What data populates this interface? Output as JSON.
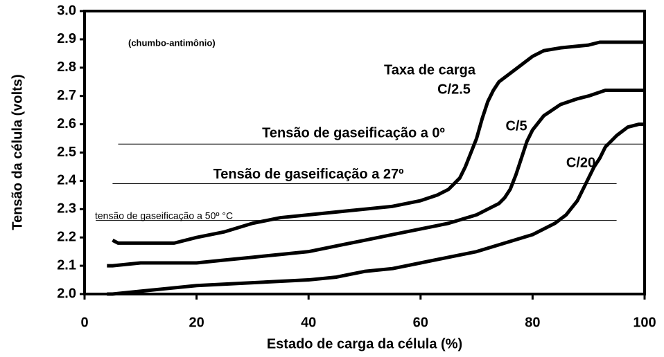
{
  "chart_data": {
    "type": "line",
    "xlabel": "Estado de carga da célula (%)",
    "ylabel": "Tensão da célula (volts)",
    "xlim": [
      0,
      100
    ],
    "ylim": [
      2.0,
      3.0
    ],
    "xticks": [
      0,
      20,
      40,
      60,
      80,
      100
    ],
    "yticks": [
      {
        "value": 2.0,
        "label": "2.0"
      },
      2.1,
      2.2,
      2.3,
      2.4,
      2.5,
      2.6,
      2.7,
      2.8,
      2.9,
      {
        "value": 3.0,
        "label": "3.0"
      }
    ],
    "annotations": [
      "(chumbo-antimônio)",
      "Taxa de carga"
    ],
    "reference_lines": [
      {
        "label": "Tensão de gaseificação a 0º",
        "y": 2.53,
        "x": [
          6,
          100
        ]
      },
      {
        "label": "Tensão de gaseificação a 27º",
        "y": 2.39,
        "x": [
          5,
          95
        ]
      },
      {
        "label": "tensão de gaseificação a 50º °C",
        "y": 2.26,
        "x": [
          2,
          95
        ]
      }
    ],
    "series": [
      {
        "name": "C/2.5",
        "color": "#000000",
        "x": [
          5,
          6,
          10,
          16,
          20,
          25,
          30,
          35,
          40,
          45,
          50,
          55,
          60,
          63,
          65,
          67,
          68,
          69,
          70,
          71,
          72,
          73,
          74,
          76,
          78,
          80,
          82,
          85,
          90,
          92,
          100
        ],
        "values": [
          2.19,
          2.18,
          2.18,
          2.18,
          2.2,
          2.22,
          2.25,
          2.27,
          2.28,
          2.29,
          2.3,
          2.31,
          2.33,
          2.35,
          2.37,
          2.41,
          2.45,
          2.5,
          2.55,
          2.62,
          2.68,
          2.72,
          2.75,
          2.78,
          2.81,
          2.84,
          2.86,
          2.87,
          2.88,
          2.89,
          2.89
        ]
      },
      {
        "name": "C/5",
        "color": "#000000",
        "x": [
          4,
          5,
          10,
          15,
          20,
          25,
          30,
          35,
          40,
          45,
          50,
          55,
          60,
          65,
          70,
          72,
          74,
          75,
          76,
          77,
          78,
          79,
          80,
          82,
          85,
          88,
          90,
          93,
          95,
          100
        ],
        "values": [
          2.1,
          2.1,
          2.11,
          2.11,
          2.11,
          2.12,
          2.13,
          2.14,
          2.15,
          2.17,
          2.19,
          2.21,
          2.23,
          2.25,
          2.28,
          2.3,
          2.32,
          2.34,
          2.37,
          2.42,
          2.48,
          2.54,
          2.58,
          2.63,
          2.67,
          2.69,
          2.7,
          2.72,
          2.72,
          2.72
        ]
      },
      {
        "name": "C/20",
        "color": "#000000",
        "x": [
          4,
          5,
          10,
          15,
          20,
          30,
          40,
          45,
          50,
          55,
          60,
          65,
          70,
          75,
          80,
          84,
          86,
          88,
          89,
          90,
          91,
          92,
          93,
          95,
          97,
          99,
          100
        ],
        "values": [
          2.0,
          2.0,
          2.01,
          2.02,
          2.03,
          2.04,
          2.05,
          2.06,
          2.08,
          2.09,
          2.11,
          2.13,
          2.15,
          2.18,
          2.21,
          2.25,
          2.28,
          2.33,
          2.37,
          2.41,
          2.45,
          2.48,
          2.52,
          2.56,
          2.59,
          2.6,
          2.6
        ]
      }
    ]
  }
}
